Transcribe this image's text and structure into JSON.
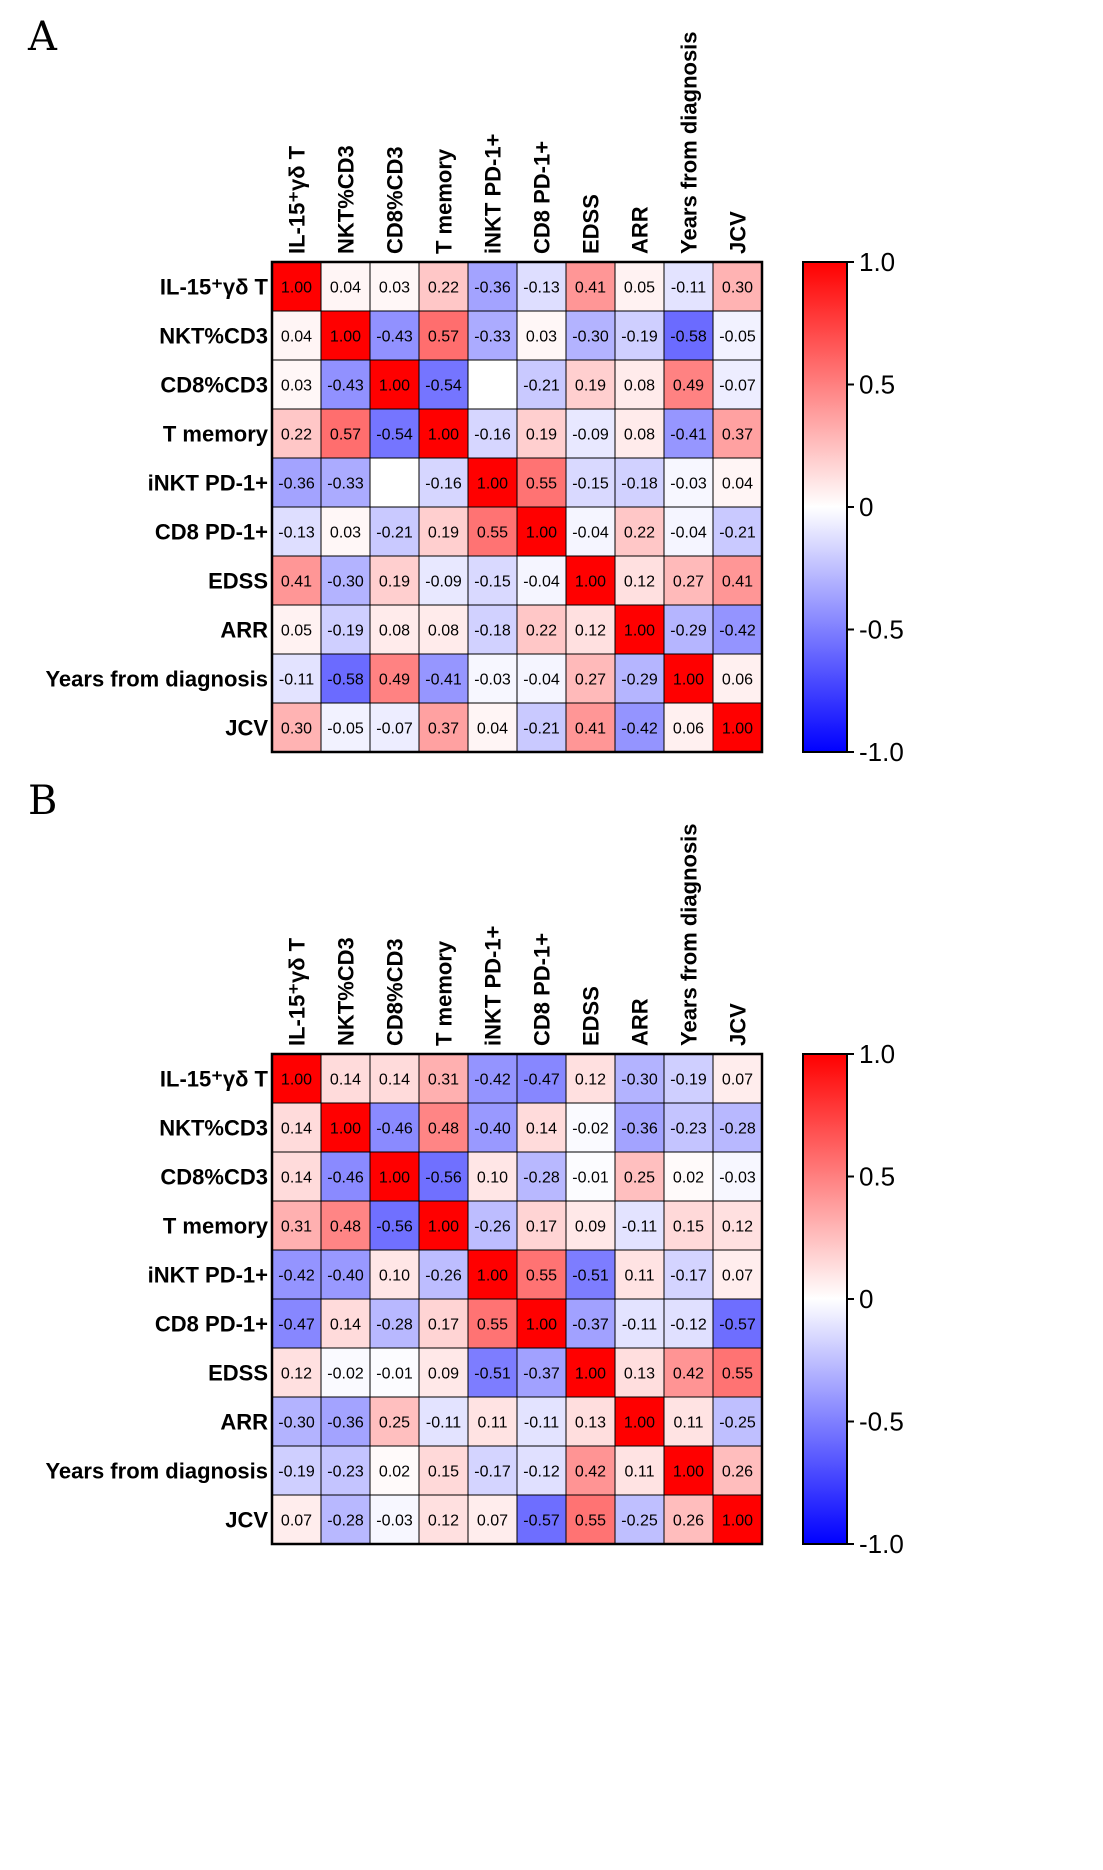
{
  "panels": [
    {
      "label": "A"
    },
    {
      "label": "B"
    }
  ],
  "colors": {
    "positive": "#ff0000",
    "neutral": "#ffffff",
    "negative": "#0000ff"
  },
  "chart_data": [
    {
      "type": "heatmap",
      "title": "",
      "rows": [
        "IL-15⁺γδ T",
        "NKT%CD3",
        "CD8%CD3",
        "T memory",
        "iNKT PD-1+",
        "CD8 PD-1+",
        "EDSS",
        "ARR",
        "Years from diagnosis",
        "JCV"
      ],
      "columns": [
        "IL-15⁺γδ T",
        "NKT%CD3",
        "CD8%CD3",
        "T memory",
        "iNKT PD-1+",
        "CD8 PD-1+",
        "EDSS",
        "ARR",
        "Years from diagnosis",
        "JCV"
      ],
      "values": [
        [
          1.0,
          0.04,
          0.03,
          0.22,
          -0.36,
          -0.13,
          0.41,
          0.05,
          -0.11,
          0.3
        ],
        [
          0.04,
          1.0,
          -0.43,
          0.57,
          -0.33,
          0.03,
          -0.3,
          -0.19,
          -0.58,
          -0.05
        ],
        [
          0.03,
          -0.43,
          1.0,
          -0.54,
          null,
          -0.21,
          0.19,
          0.08,
          0.49,
          -0.07
        ],
        [
          0.22,
          0.57,
          -0.54,
          1.0,
          -0.16,
          0.19,
          -0.09,
          0.08,
          -0.41,
          0.37
        ],
        [
          -0.36,
          -0.33,
          null,
          -0.16,
          1.0,
          0.55,
          -0.15,
          -0.18,
          -0.03,
          0.04
        ],
        [
          -0.13,
          0.03,
          -0.21,
          0.19,
          0.55,
          1.0,
          -0.04,
          0.22,
          -0.04,
          -0.21
        ],
        [
          0.41,
          -0.3,
          0.19,
          -0.09,
          -0.15,
          -0.04,
          1.0,
          0.12,
          0.27,
          0.41
        ],
        [
          0.05,
          -0.19,
          0.08,
          0.08,
          -0.18,
          0.22,
          0.12,
          1.0,
          -0.29,
          -0.42
        ],
        [
          -0.11,
          -0.58,
          0.49,
          -0.41,
          -0.03,
          -0.04,
          0.27,
          -0.29,
          1.0,
          0.06
        ],
        [
          0.3,
          -0.05,
          -0.07,
          0.37,
          0.04,
          -0.21,
          0.41,
          -0.42,
          0.06,
          1.0
        ]
      ],
      "colorbar": {
        "range": [
          -1.0,
          1.0
        ],
        "ticks": [
          "1.0",
          "0.5",
          "0",
          "-0.5",
          "-1.0"
        ]
      }
    },
    {
      "type": "heatmap",
      "title": "",
      "rows": [
        "IL-15⁺γδ T",
        "NKT%CD3",
        "CD8%CD3",
        "T memory",
        "iNKT PD-1+",
        "CD8 PD-1+",
        "EDSS",
        "ARR",
        "Years from diagnosis",
        "JCV"
      ],
      "columns": [
        "IL-15⁺γδ T",
        "NKT%CD3",
        "CD8%CD3",
        "T memory",
        "iNKT PD-1+",
        "CD8 PD-1+",
        "EDSS",
        "ARR",
        "Years from diagnosis",
        "JCV"
      ],
      "values": [
        [
          1.0,
          0.14,
          0.14,
          0.31,
          -0.42,
          -0.47,
          0.12,
          -0.3,
          -0.19,
          0.07
        ],
        [
          0.14,
          1.0,
          -0.46,
          0.48,
          -0.4,
          0.14,
          -0.02,
          -0.36,
          -0.23,
          -0.28
        ],
        [
          0.14,
          -0.46,
          1.0,
          -0.56,
          0.1,
          -0.28,
          -0.01,
          0.25,
          0.02,
          -0.03
        ],
        [
          0.31,
          0.48,
          -0.56,
          1.0,
          -0.26,
          0.17,
          0.09,
          -0.11,
          0.15,
          0.12
        ],
        [
          -0.42,
          -0.4,
          0.1,
          -0.26,
          1.0,
          0.55,
          -0.51,
          0.11,
          -0.17,
          0.07
        ],
        [
          -0.47,
          0.14,
          -0.28,
          0.17,
          0.55,
          1.0,
          -0.37,
          -0.11,
          -0.12,
          -0.57
        ],
        [
          0.12,
          -0.02,
          -0.01,
          0.09,
          -0.51,
          -0.37,
          1.0,
          0.13,
          0.42,
          0.55
        ],
        [
          -0.3,
          -0.36,
          0.25,
          -0.11,
          0.11,
          -0.11,
          0.13,
          1.0,
          0.11,
          -0.25
        ],
        [
          -0.19,
          -0.23,
          0.02,
          0.15,
          -0.17,
          -0.12,
          0.42,
          0.11,
          1.0,
          0.26
        ],
        [
          0.07,
          -0.28,
          -0.03,
          0.12,
          0.07,
          -0.57,
          0.55,
          -0.25,
          0.26,
          1.0
        ]
      ],
      "colorbar": {
        "range": [
          -1.0,
          1.0
        ],
        "ticks": [
          "1.0",
          "0.5",
          "0",
          "-0.5",
          "-1.0"
        ]
      }
    }
  ]
}
